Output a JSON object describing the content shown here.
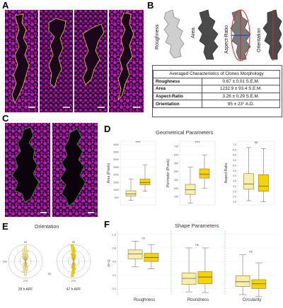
{
  "panels": {
    "A": "A",
    "B": "B",
    "C": "C",
    "D": "D",
    "E": "E",
    "F": "F"
  },
  "colors": {
    "magenta": "#c418c4",
    "dark": "#1c061c",
    "outline": "#d4d23a",
    "outline_c": "#3a9a3a",
    "light_box": "#f6eeb0",
    "dark_box": "#f5d200",
    "pale": "#f2eba8"
  },
  "panel_b": {
    "shape_labels": [
      "Roughness",
      "Area",
      "Aspect-Ratio",
      "Orientation"
    ],
    "table_title": "Averaged Characteristics of Clones Morphology",
    "rows": [
      {
        "name": "Roughness",
        "value": "0.67 ± 0.01 S.E.M."
      },
      {
        "name": "Area",
        "value": "1232.9 ± 93.4 S.E.M."
      },
      {
        "name": "Aspect-Ratio",
        "value": "3.26 ± 0.29 S.E.M."
      },
      {
        "name": "Orientation",
        "value": "95 ± 23° A.D."
      }
    ]
  },
  "panel_d": {
    "title": "Geometrical Parameters",
    "subplots": [
      {
        "ylabel": "Area (Pixels)",
        "sig": "****",
        "yticks": [
          "4000",
          "3500",
          "3000",
          "2500",
          "2000",
          "1500",
          "1000",
          "500"
        ],
        "ylim": [
          0,
          4200
        ],
        "boxes": [
          {
            "min": 300,
            "q1": 580,
            "med": 720,
            "q3": 930,
            "max": 1700
          },
          {
            "min": 900,
            "q1": 1330,
            "med": 1480,
            "q3": 1700,
            "max": 2650
          }
        ]
      },
      {
        "ylabel": "Perimeter (Pixels)",
        "sig": "****",
        "yticks": [
          "700",
          "600",
          "500",
          "400",
          "300",
          "200",
          "100"
        ],
        "ylim": [
          0,
          760
        ],
        "boxes": [
          {
            "min": 20,
            "q1": 125,
            "med": 180,
            "q3": 245,
            "max": 450
          },
          {
            "min": 200,
            "q1": 320,
            "med": 365,
            "q3": 430,
            "max": 595
          }
        ]
      },
      {
        "ylabel": "Aspect-Ratio",
        "sig": "ns",
        "yticks": [
          "7.0",
          "6.5",
          "6.0",
          "5.5",
          "5.0",
          "4.5",
          "4.0",
          "3.5",
          "3.0",
          "2.5",
          "2.0",
          "1.5"
        ],
        "ylim": [
          1.2,
          7.3
        ],
        "boxes": [
          {
            "min": 1.6,
            "q1": 2.7,
            "med": 3.2,
            "q3": 4.2,
            "max": 6.7
          },
          {
            "min": 1.5,
            "q1": 2.5,
            "med": 3.0,
            "q3": 4.1,
            "max": 6.6
          }
        ]
      }
    ]
  },
  "panel_e": {
    "title": "Orientation",
    "ticks": {
      "top": "90",
      "left": "180",
      "bottom": "270"
    },
    "sig": "ns",
    "labels": [
      "28 h APF",
      "47 h APF"
    ]
  },
  "panel_f": {
    "title": "Shape Parameters",
    "ylabel": "(0-1)",
    "yticks": [
      "1.0",
      "0.8",
      "0.6",
      "0.4",
      "0.2"
    ],
    "ylim": [
      0.1,
      1.05
    ],
    "groups": [
      {
        "name": "Roughness",
        "sig": "ns",
        "boxes": [
          {
            "min": 0.52,
            "q1": 0.64,
            "med": 0.71,
            "q3": 0.77,
            "max": 0.9
          },
          {
            "min": 0.49,
            "q1": 0.6,
            "med": 0.66,
            "q3": 0.72,
            "max": 0.85
          }
        ]
      },
      {
        "name": "Roundness",
        "sig": "ns",
        "boxes": [
          {
            "min": 0.15,
            "q1": 0.26,
            "med": 0.35,
            "q3": 0.43,
            "max": 0.8
          },
          {
            "min": 0.14,
            "q1": 0.27,
            "med": 0.37,
            "q3": 0.45,
            "max": 0.8
          }
        ]
      },
      {
        "name": "Circularity",
        "sig": "ns",
        "boxes": [
          {
            "min": 0.11,
            "q1": 0.23,
            "med": 0.3,
            "q3": 0.39,
            "max": 0.7
          },
          {
            "min": 0.08,
            "q1": 0.2,
            "med": 0.27,
            "q3": 0.33,
            "max": 0.58
          }
        ]
      }
    ]
  },
  "chart_data": [
    {
      "type": "box",
      "title": "Geometrical Parameters",
      "ylabel": "Area (Pixels)",
      "ylim": [
        0,
        4200
      ],
      "series": [
        {
          "values": [
            300,
            580,
            720,
            930,
            1700
          ]
        },
        {
          "values": [
            900,
            1330,
            1480,
            1700,
            2650
          ]
        }
      ]
    },
    {
      "type": "box",
      "ylabel": "Perimeter (Pixels)",
      "ylim": [
        0,
        760
      ],
      "series": [
        {
          "values": [
            20,
            125,
            180,
            245,
            450
          ]
        },
        {
          "values": [
            200,
            320,
            365,
            430,
            595
          ]
        }
      ]
    },
    {
      "type": "box",
      "ylabel": "Aspect-Ratio",
      "ylim": [
        1.2,
        7.3
      ],
      "series": [
        {
          "values": [
            1.6,
            2.7,
            3.2,
            4.2,
            6.7
          ]
        },
        {
          "values": [
            1.5,
            2.5,
            3.0,
            4.1,
            6.6
          ]
        }
      ]
    },
    {
      "type": "box",
      "title": "Shape Parameters",
      "ylabel": "(0-1)",
      "categories": [
        "Roughness",
        "Roundness",
        "Circularity"
      ],
      "ylim": [
        0.1,
        1.05
      ],
      "series": [
        {
          "values": [
            [
              0.52,
              0.64,
              0.71,
              0.77,
              0.9
            ],
            [
              0.15,
              0.26,
              0.35,
              0.43,
              0.8
            ],
            [
              0.11,
              0.23,
              0.3,
              0.39,
              0.7
            ]
          ]
        },
        {
          "values": [
            [
              0.49,
              0.6,
              0.66,
              0.72,
              0.85
            ],
            [
              0.14,
              0.27,
              0.37,
              0.45,
              0.8
            ],
            [
              0.08,
              0.2,
              0.27,
              0.33,
              0.58
            ]
          ]
        }
      ]
    }
  ]
}
